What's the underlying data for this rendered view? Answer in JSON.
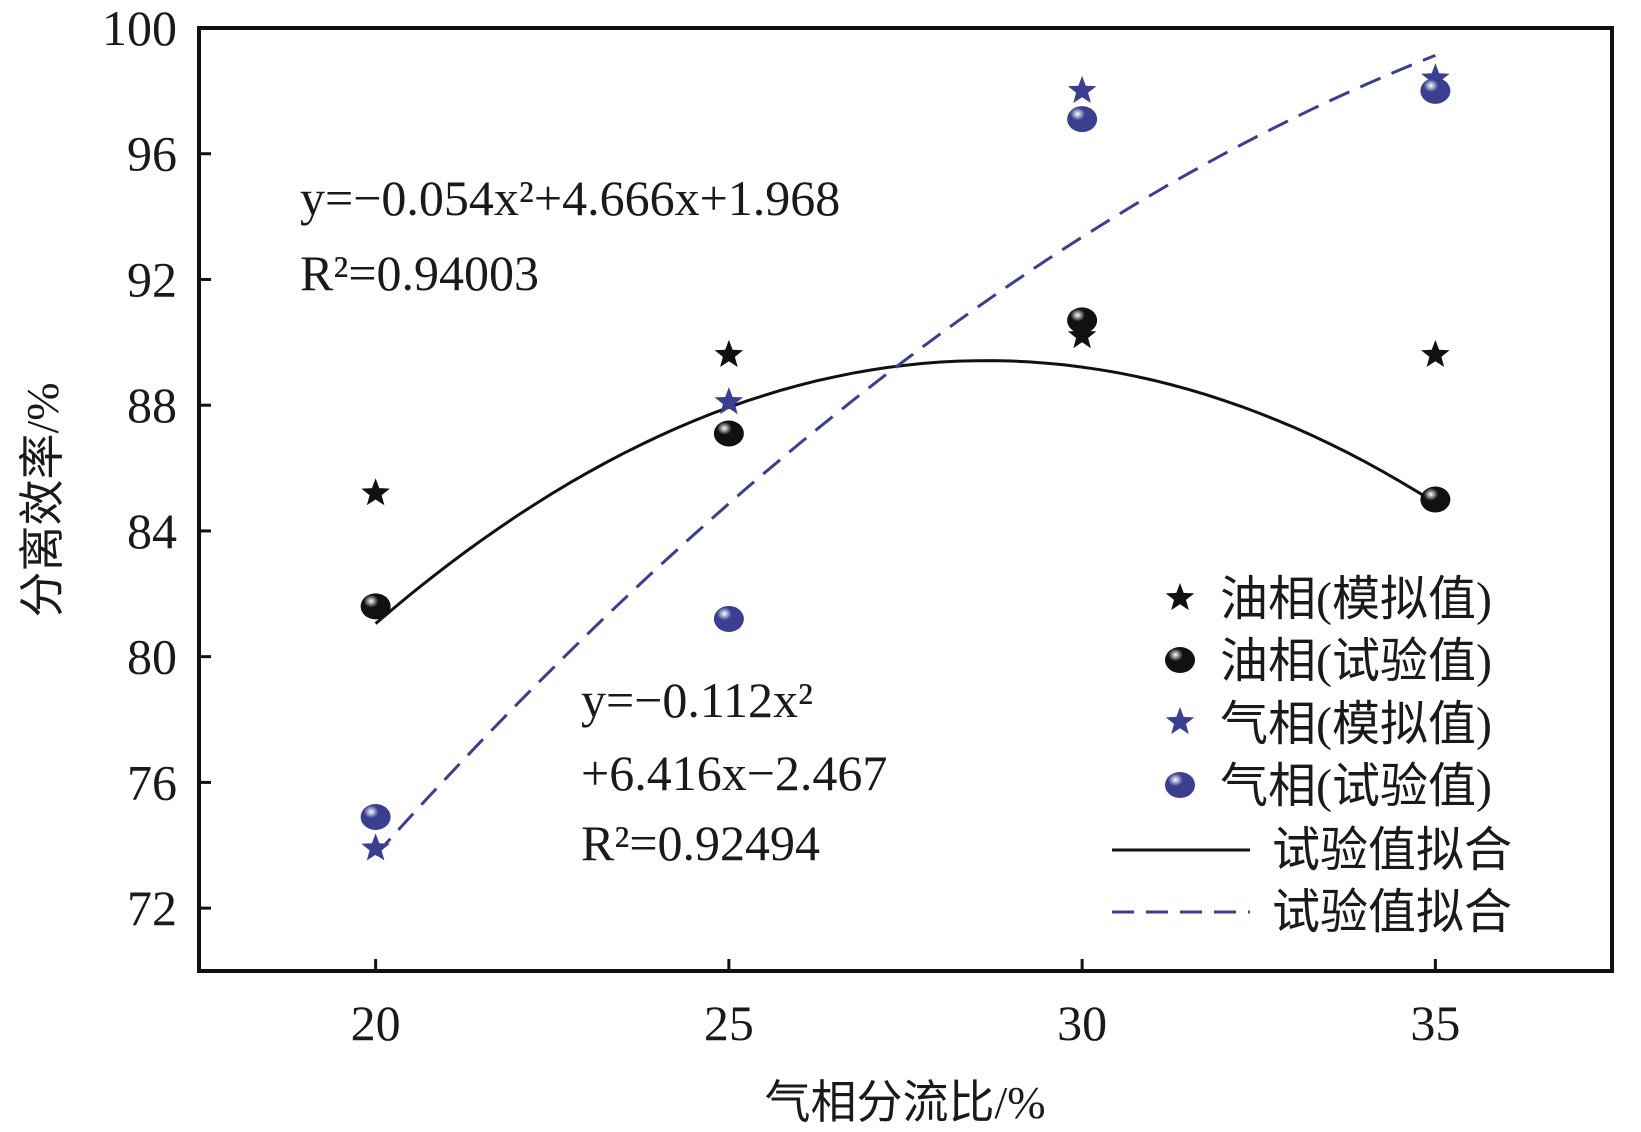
{
  "chart_data": {
    "type": "scatter",
    "xlabel": "气相分流比/%",
    "ylabel": "分离效率/%",
    "xlim": [
      17.5,
      37.5
    ],
    "ylim": [
      70,
      100
    ],
    "xticks": [
      "20",
      "25",
      "30",
      "35"
    ],
    "yticks": [
      "72",
      "76",
      "80",
      "84",
      "88",
      "92",
      "96",
      "100"
    ],
    "grid": false,
    "legend_position": "bottom-right",
    "x": [
      20,
      25,
      30,
      35
    ],
    "series": [
      {
        "name": "油相(模拟值)",
        "marker": "star",
        "color": "#111111",
        "values": [
          85.2,
          89.6,
          90.2,
          89.6
        ]
      },
      {
        "name": "油相(试验值)",
        "marker": "sphere",
        "color": "#111111",
        "values": [
          81.6,
          87.1,
          90.7,
          85.0
        ]
      },
      {
        "name": "气相(模拟值)",
        "marker": "star",
        "color": "#3a3f8f",
        "values": [
          73.9,
          88.1,
          98.0,
          98.4
        ]
      },
      {
        "name": "气相(试验值)",
        "marker": "sphere",
        "color": "#3a3f8f",
        "values": [
          74.9,
          81.2,
          97.1,
          98.0
        ]
      }
    ],
    "fits": [
      {
        "name": "试验值拟合",
        "style": "solid",
        "color": "#111111",
        "coeffs": [
          -0.112,
          6.416,
          -2.467
        ],
        "range": [
          20,
          35
        ]
      },
      {
        "name": "试验值拟合",
        "style": "dashed",
        "color": "#3a3f8f",
        "coeffs": [
          -0.054,
          4.666,
          1.968
        ],
        "range": [
          20,
          35
        ]
      }
    ],
    "annotations": {
      "gas_eq": "y=−0.054x²+4.666x+1.968",
      "gas_r2": "R²=0.94003",
      "oil_eq_line1": "y=−0.112x²",
      "oil_eq_line2": "+6.416x−2.467",
      "oil_r2": "R²=0.92494"
    }
  }
}
